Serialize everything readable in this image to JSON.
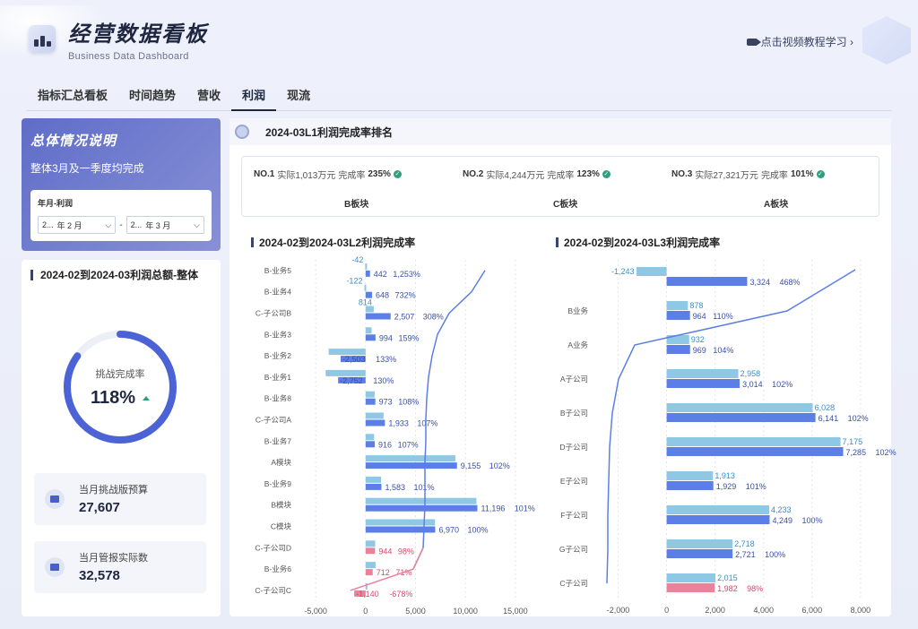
{
  "header": {
    "title": "经营数据看板",
    "subtitle": "Business Data Dashboard",
    "tutorial_link": "点击视频教程学习 ›"
  },
  "tabs": [
    "指标汇总看板",
    "时间趋势",
    "营收",
    "利润",
    "现流"
  ],
  "active_tab": 3,
  "summary": {
    "title": "总体情况说明",
    "text": "整体3月及一季度均完成"
  },
  "filter": {
    "label": "年月-利润",
    "from_year": "2...",
    "from_month": "年 2  月",
    "to_year": "2...",
    "to_month": "年 3  月",
    "separator": "-"
  },
  "total": {
    "title": "2024-02到2024-03利润总额-整体",
    "ring_label": "挑战完成率",
    "ring_value": "118%",
    "ring_fraction": 0.85,
    "metrics": [
      {
        "label": "当月挑战版预算",
        "value": "27,607"
      },
      {
        "label": "当月管报实际数",
        "value": "32,578"
      }
    ]
  },
  "ranking": {
    "title": "2024-03L1利润完成率排名",
    "items": [
      {
        "no": "NO.1",
        "actual": "实际1,013万元",
        "rate_label": "完成率",
        "rate": "235%",
        "name": "B板块"
      },
      {
        "no": "NO.2",
        "actual": "实际4,244万元",
        "rate_label": "完成率",
        "rate": "123%",
        "name": "C板块"
      },
      {
        "no": "NO.3",
        "actual": "实际27,321万元",
        "rate_label": "完成率",
        "rate": "101%",
        "name": "A板块"
      }
    ]
  },
  "colors": {
    "budget_bar": "#8fc8e4",
    "actual_bar": "#5b7fe6",
    "negative_bar": "#e9829a",
    "line": "#5b7fe6",
    "accent": "#6270c6",
    "check": "#2f9e7c"
  },
  "chart_data": [
    {
      "type": "bar",
      "title": "2024-02到2024-03L2利润完成率",
      "orientation": "horizontal",
      "categories": [
        "B-业务5",
        "B-业务4",
        "C-子公司B",
        "B-业务3",
        "B-业务2",
        "B-业务1",
        "B-业务8",
        "C-子公司A",
        "B-业务7",
        "A模块",
        "B-业务9",
        "B模块",
        "C模块",
        "C-子公司D",
        "B-业务6",
        "C-子公司C"
      ],
      "series": [
        {
          "values": [
            -42,
            -122,
            814,
            null,
            -2503,
            -2752,
            null,
            null,
            null,
            null,
            null,
            null,
            null,
            null,
            null,
            null
          ]
        },
        {
          "values": [
            442,
            648,
            2507,
            994,
            -2503,
            -2752,
            973,
            1933,
            916,
            9155,
            1583,
            11196,
            6970,
            944,
            712,
            -1140
          ]
        }
      ],
      "budget_values": [
        -42,
        -122,
        814,
        600,
        -3700,
        -4000,
        900,
        1800,
        850,
        9000,
        1550,
        11100,
        6950,
        960,
        1000,
        169
      ],
      "rate_labels": [
        "1,253%",
        "732%",
        "308%",
        "159%",
        "133%",
        "130%",
        "108%",
        "107%",
        "107%",
        "102%",
        "101%",
        "101%",
        "100%",
        "98%",
        "71%",
        "-678%"
      ],
      "value_labels": [
        "442",
        "648",
        "2,507",
        "994",
        "-2,503",
        "-2,752",
        "973",
        "1,933",
        "916",
        "9,155",
        "1,583",
        "11,196",
        "6,970",
        "944",
        "712",
        "-1,140"
      ],
      "budget_labels": [
        "-42",
        "-122",
        "814",
        "",
        "",
        "",
        "",
        "",
        "",
        "",
        "",
        "",
        "",
        "",
        "",
        ""
      ],
      "xlim": [
        -6000,
        16000
      ],
      "xticks": [
        -5000,
        0,
        5000,
        10000,
        15000
      ],
      "xtick_labels": [
        "-5,000",
        "0",
        "5,000",
        "10,000",
        "15,000"
      ],
      "negative_categories": [
        "C-子公司D",
        "B-业务6",
        "C-子公司C"
      ]
    },
    {
      "type": "bar",
      "title": "2024-02到2024-03L3利润完成率",
      "orientation": "horizontal",
      "categories": [
        "",
        "B业务",
        "A业务",
        "A子公司",
        "B子公司",
        "D子公司",
        "E子公司",
        "F子公司",
        "G子公司",
        "C子公司"
      ],
      "budget_values": [
        -1243,
        878,
        932,
        2958,
        6028,
        7175,
        1913,
        4233,
        2718,
        2015
      ],
      "actual_values": [
        3324,
        964,
        969,
        3014,
        6141,
        7285,
        1929,
        4249,
        2721,
        1982
      ],
      "budget_labels": [
        "-1,243",
        "878",
        "932",
        "2,958",
        "6,028",
        "7,175",
        "1,913",
        "4,233",
        "2,718",
        "2,015"
      ],
      "value_labels": [
        "3,324",
        "964",
        "969",
        "3,014",
        "6,141",
        "7,285",
        "1,929",
        "4,249",
        "2,721",
        "1,982"
      ],
      "rate_labels": [
        "468%",
        "110%",
        "104%",
        "102%",
        "102%",
        "102%",
        "101%",
        "100%",
        "100%",
        "98%"
      ],
      "xlim": [
        -2500,
        8300
      ],
      "xticks": [
        -2000,
        0,
        2000,
        4000,
        6000,
        8000
      ],
      "xtick_labels": [
        "-2,000",
        "0",
        "2,000",
        "4,000",
        "6,000",
        "8,000"
      ],
      "negative_categories": [
        "C子公司"
      ]
    }
  ]
}
